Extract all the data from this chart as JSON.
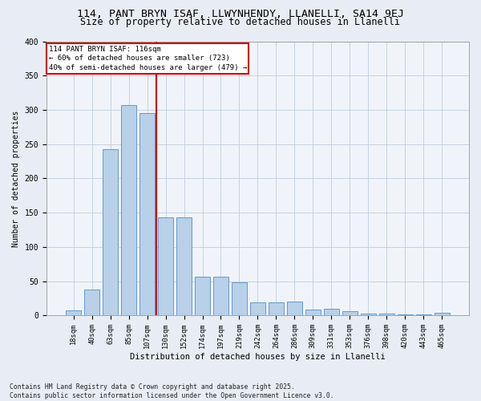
{
  "title1": "114, PANT BRYN ISAF, LLWYNHENDY, LLANELLI, SA14 9EJ",
  "title2": "Size of property relative to detached houses in Llanelli",
  "xlabel": "Distribution of detached houses by size in Llanelli",
  "ylabel": "Number of detached properties",
  "categories": [
    "18sqm",
    "40sqm",
    "63sqm",
    "85sqm",
    "107sqm",
    "130sqm",
    "152sqm",
    "174sqm",
    "197sqm",
    "219sqm",
    "242sqm",
    "264sqm",
    "286sqm",
    "309sqm",
    "331sqm",
    "353sqm",
    "376sqm",
    "398sqm",
    "420sqm",
    "443sqm",
    "465sqm"
  ],
  "values": [
    7,
    38,
    243,
    307,
    295,
    143,
    143,
    57,
    57,
    48,
    19,
    19,
    20,
    9,
    10,
    6,
    3,
    3,
    2,
    1,
    4
  ],
  "bar_color": "#b8d0e8",
  "bar_edge_color": "#6699cc",
  "vline_x": 4.5,
  "vline_color": "#cc0000",
  "annotation_title": "114 PANT BRYN ISAF: 116sqm",
  "annotation_line1": "← 60% of detached houses are smaller (723)",
  "annotation_line2": "40% of semi-detached houses are larger (479) →",
  "annotation_box_color": "#ffffff",
  "annotation_box_edge": "#cc0000",
  "ylim": [
    0,
    400
  ],
  "yticks": [
    0,
    50,
    100,
    150,
    200,
    250,
    300,
    350,
    400
  ],
  "footer": "Contains HM Land Registry data © Crown copyright and database right 2025.\nContains public sector information licensed under the Open Government Licence v3.0.",
  "bg_color": "#e8edf5",
  "plot_bg_color": "#f0f4fa",
  "title_fontsize": 9.5,
  "subtitle_fontsize": 8.5,
  "bar_width": 0.85
}
